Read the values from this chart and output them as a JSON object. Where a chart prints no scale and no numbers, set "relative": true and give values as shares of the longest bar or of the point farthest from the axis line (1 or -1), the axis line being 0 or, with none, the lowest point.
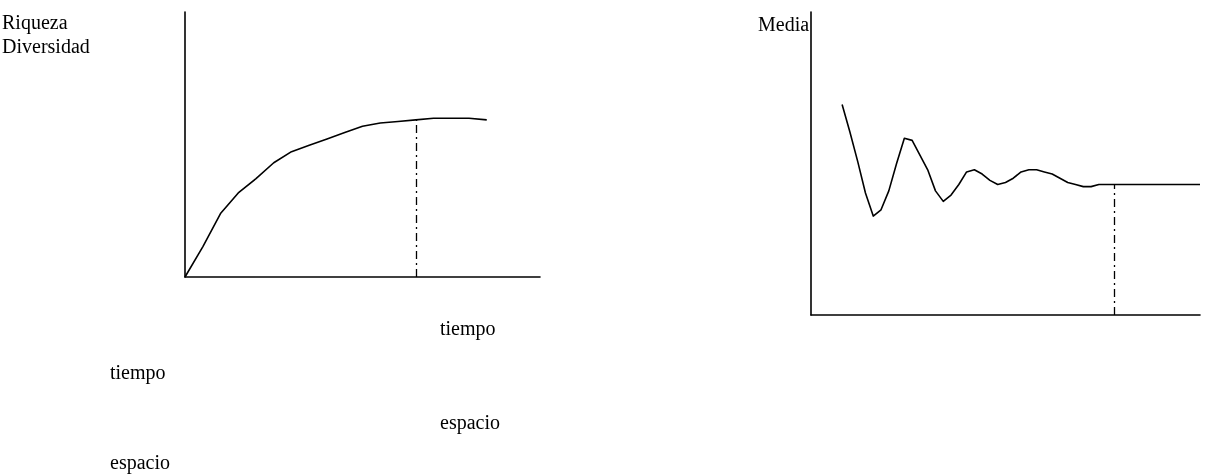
{
  "chart_data": [
    {
      "type": "line",
      "relative": true,
      "ylabel": "Riqueza\nDiversidad",
      "grid": false,
      "marker": "none",
      "line_style": "solid",
      "annotations": [
        "tiempo",
        "tiempo",
        "espacio",
        "espacio"
      ],
      "categories": [
        null,
        null,
        null,
        null,
        null,
        null,
        null,
        null,
        null,
        null,
        null,
        null,
        null,
        null,
        null,
        null,
        null,
        null,
        null,
        null,
        null
      ],
      "series": [
        {
          "color": "#000000",
          "values": [
            0,
            0.19,
            0.4,
            0.53,
            0.62,
            0.72,
            0.79,
            0.83,
            0.87,
            0.91,
            0.95,
            0.97,
            0.98,
            0.99,
            1,
            1,
            1,
            0.99,
            null,
            null,
            null
          ]
        }
      ]
    },
    {
      "type": "line",
      "relative": true,
      "ylabel": "Media",
      "grid": false,
      "marker": "none",
      "line_style": "solid",
      "categories": [
        null,
        null,
        null,
        null,
        null,
        null,
        null,
        null,
        null,
        null,
        null,
        null,
        null,
        null,
        null,
        null,
        null,
        null,
        null,
        null,
        null,
        null,
        null,
        null,
        null,
        null,
        null,
        null,
        null,
        null,
        null,
        null,
        null,
        null,
        null,
        null,
        null,
        null,
        null,
        null,
        null,
        null,
        null,
        null,
        null,
        null,
        null,
        null,
        null,
        null,
        null
      ],
      "series": [
        {
          "color": "#000000",
          "values": [
            null,
            null,
            null,
            null,
            1,
            0.87,
            0.73,
            0.58,
            0.47,
            0.5,
            0.59,
            0.72,
            0.84,
            0.83,
            0.76,
            0.69,
            0.59,
            0.54,
            0.57,
            0.62,
            0.68,
            0.69,
            0.67,
            0.64,
            0.62,
            0.63,
            0.65,
            0.68,
            0.69,
            0.69,
            0.68,
            0.67,
            0.65,
            0.63,
            0.62,
            0.61,
            0.61,
            0.62,
            0.62,
            0.62,
            0.62,
            0.62,
            0.62,
            0.62,
            0.62,
            0.62,
            0.62,
            0.62,
            0.62,
            0.62,
            0.62
          ]
        }
      ]
    }
  ]
}
